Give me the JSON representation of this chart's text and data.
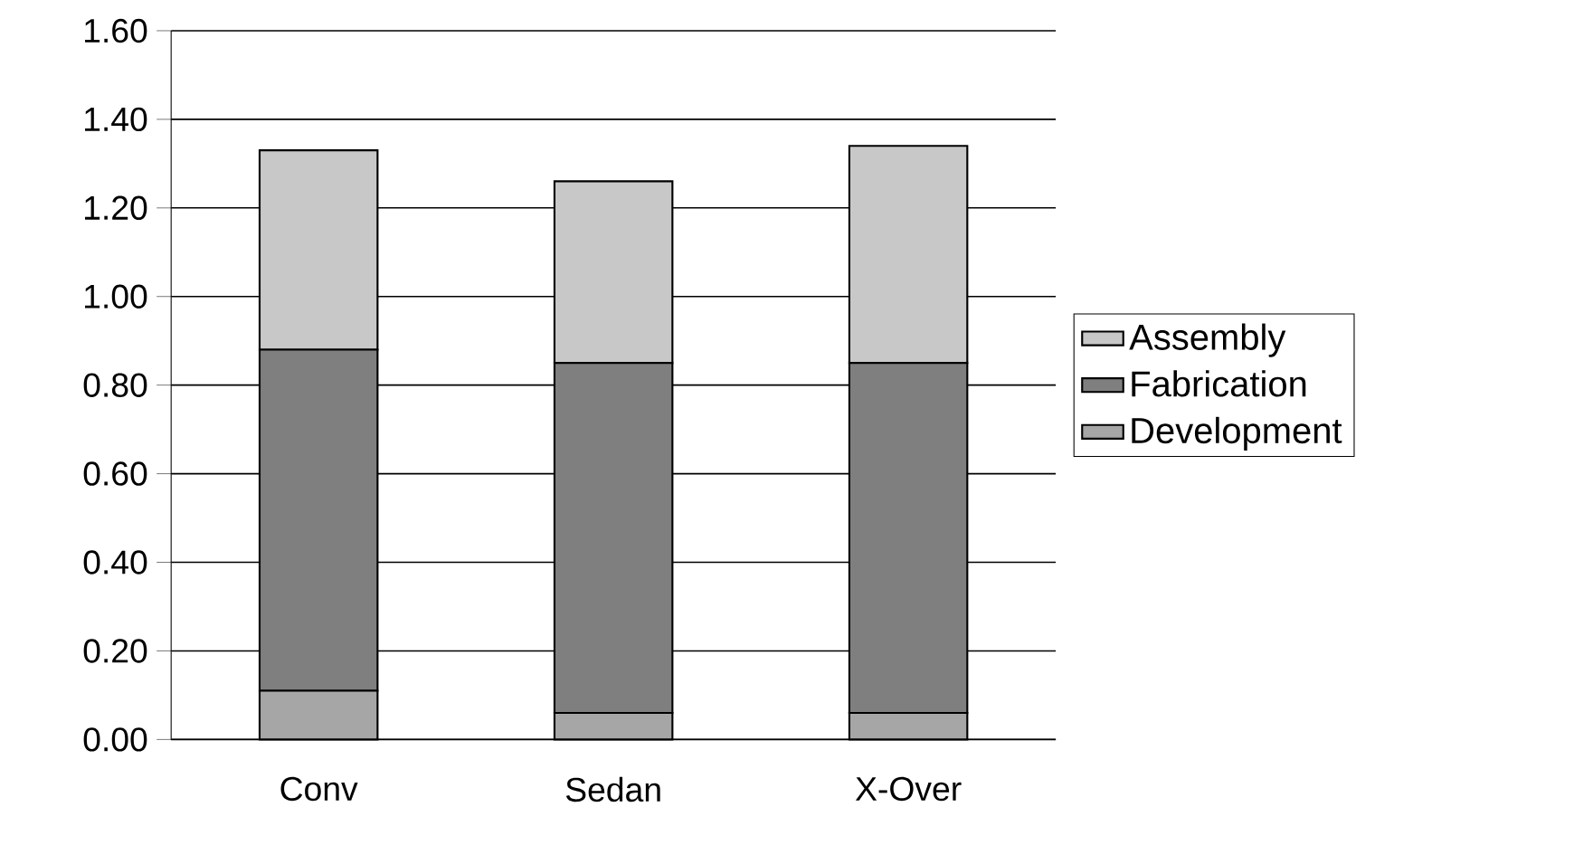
{
  "chart_data": {
    "type": "bar",
    "stacked": true,
    "categories": [
      "Conv",
      "Sedan",
      "X-Over"
    ],
    "series": [
      {
        "name": "Development",
        "color": "#a6a6a6",
        "values": [
          0.11,
          0.06,
          0.06
        ]
      },
      {
        "name": "Fabrication",
        "color": "#7f7f7f",
        "values": [
          0.77,
          0.79,
          0.79
        ]
      },
      {
        "name": "Assembly",
        "color": "#c8c8c8",
        "values": [
          0.45,
          0.41,
          0.49
        ]
      }
    ],
    "ylim": [
      0,
      1.6
    ],
    "yticks": [
      {
        "value": 0,
        "label": "0.00"
      },
      {
        "value": 0.2,
        "label": "0.20"
      },
      {
        "value": 0.4,
        "label": "0.40"
      },
      {
        "value": 0.6,
        "label": "0.60"
      },
      {
        "value": 0.8,
        "label": "0.80"
      },
      {
        "value": 1.0,
        "label": "1.00"
      },
      {
        "value": 1.2,
        "label": "1.20"
      },
      {
        "value": 1.4,
        "label": "1.40"
      },
      {
        "value": 1.6,
        "label": "1.60"
      }
    ],
    "grid": "y",
    "legend": "right"
  }
}
